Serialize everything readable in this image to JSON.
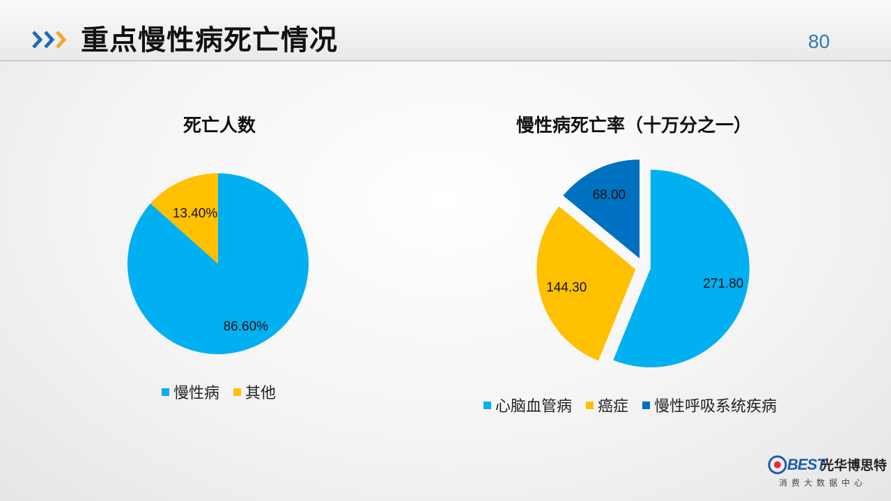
{
  "header": {
    "title": "重点慢性病死亡情况",
    "page_number": "80"
  },
  "colors": {
    "light_blue": "#00b0f0",
    "yellow": "#ffc000",
    "dark_blue": "#0070c0",
    "chevron_blue": "#1f6cb4",
    "chevron_orange": "#f5a623"
  },
  "icons": {
    "header_chevrons": "triple-chevron-right-icon",
    "logo_mark": "logo-b-mark-icon"
  },
  "chart_data": [
    {
      "type": "pie",
      "title": "死亡人数",
      "categories": [
        "慢性病",
        "其他"
      ],
      "values": [
        86.6,
        13.4
      ],
      "data_labels": [
        "86.60%",
        "13.40%"
      ],
      "colors": [
        "#00b0f0",
        "#ffc000"
      ],
      "legend": "bottom",
      "legend_labels": [
        "慢性病",
        "其他"
      ]
    },
    {
      "type": "pie",
      "title": "慢性病死亡率（十万分之一）",
      "categories": [
        "心脑血管病",
        "癌症",
        "慢性呼吸系统疾病"
      ],
      "values": [
        271.8,
        144.3,
        68.0
      ],
      "data_labels": [
        "271.80",
        "144.30",
        "68.00"
      ],
      "colors": [
        "#00b0f0",
        "#ffc000",
        "#0070c0"
      ],
      "exploded": true,
      "legend": "bottom",
      "legend_labels": [
        "心脑血管病",
        "癌症",
        "慢性呼吸系统疾病"
      ]
    }
  ],
  "logo": {
    "brand": "BEST",
    "cn_name": "光华博思特",
    "subtitle": "消费大数据中心"
  }
}
